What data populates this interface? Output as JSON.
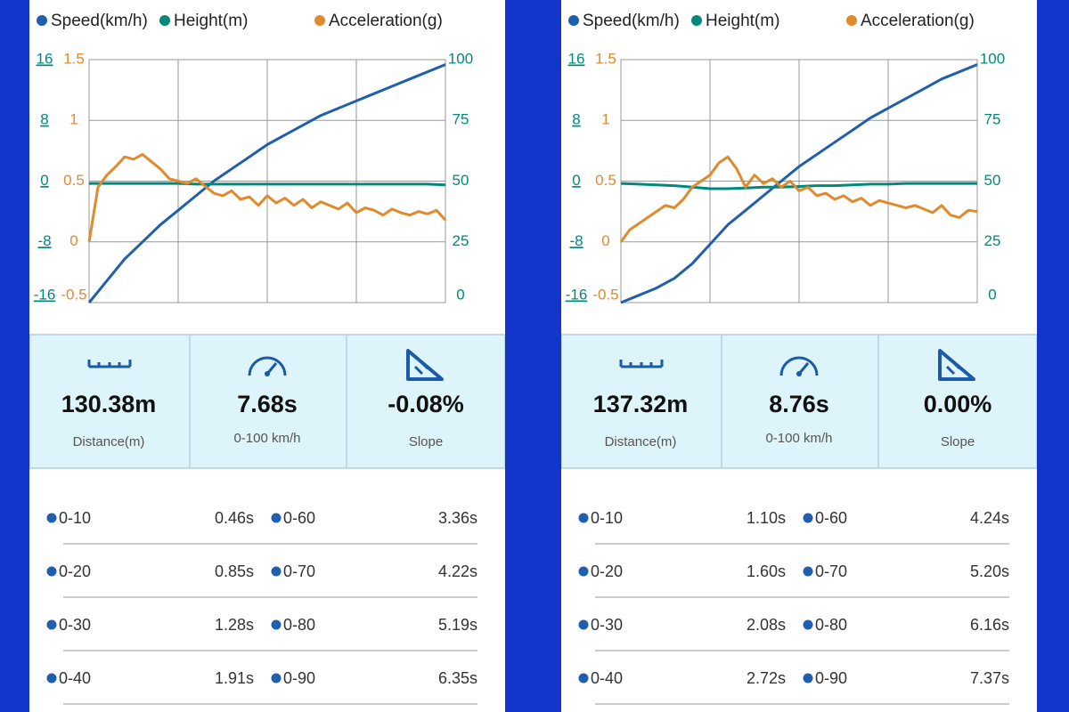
{
  "chart_data": [
    {
      "type": "line",
      "grid": true,
      "ylim": [
        -16,
        16
      ],
      "yticks": [
        -16,
        -8,
        0,
        8,
        16
      ],
      "y2lim": [
        0,
        100
      ],
      "y2ticks": [
        0,
        25,
        50,
        75,
        100
      ],
      "y3lim": [
        -0.5,
        1.5
      ],
      "y3ticks": [
        -0.5,
        0,
        0.5,
        1,
        1.5
      ],
      "series": [
        {
          "name": "Speed(km/h)",
          "color": "#1f5fad",
          "axis": "y2",
          "values": [
            0,
            9,
            18,
            25,
            32,
            38,
            44,
            50,
            55,
            60,
            65,
            69,
            73,
            77,
            80,
            83,
            86,
            89,
            92,
            95,
            98
          ]
        },
        {
          "name": "Height(m)",
          "color": "#00897b",
          "axis": "y",
          "values": [
            -0.3,
            -0.3,
            -0.3,
            -0.3,
            -0.3,
            -0.3,
            -0.4,
            -0.4,
            -0.4,
            -0.4,
            -0.4,
            -0.4,
            -0.4,
            -0.4,
            -0.4,
            -0.4,
            -0.4,
            -0.4,
            -0.4,
            -0.4,
            -0.5
          ]
        },
        {
          "name": "Acceleration(g)",
          "color": "#e08a2e",
          "axis": "y3",
          "values": [
            0,
            0.45,
            0.55,
            0.62,
            0.7,
            0.68,
            0.72,
            0.66,
            0.6,
            0.52,
            0.5,
            0.48,
            0.52,
            0.46,
            0.4,
            0.38,
            0.42,
            0.35,
            0.37,
            0.3,
            0.38,
            0.32,
            0.36,
            0.3,
            0.35,
            0.28,
            0.33,
            0.3,
            0.27,
            0.32,
            0.24,
            0.28,
            0.26,
            0.22,
            0.27,
            0.24,
            0.22,
            0.25,
            0.23,
            0.26,
            0.18
          ]
        }
      ]
    },
    {
      "type": "line",
      "grid": true,
      "ylim": [
        -16,
        16
      ],
      "yticks": [
        -16,
        -8,
        0,
        8,
        16
      ],
      "y2lim": [
        0,
        100
      ],
      "y2ticks": [
        0,
        25,
        50,
        75,
        100
      ],
      "y3lim": [
        -0.5,
        1.5
      ],
      "y3ticks": [
        -0.5,
        0,
        0.5,
        1,
        1.5
      ],
      "series": [
        {
          "name": "Speed(km/h)",
          "color": "#1f5fad",
          "axis": "y2",
          "values": [
            0,
            3,
            6,
            10,
            16,
            24,
            32,
            38,
            44,
            50,
            56,
            61,
            66,
            71,
            76,
            80,
            84,
            88,
            92,
            95,
            98
          ]
        },
        {
          "name": "Height(m)",
          "color": "#00897b",
          "axis": "y",
          "values": [
            -0.3,
            -0.4,
            -0.5,
            -0.6,
            -0.8,
            -1,
            -1,
            -0.9,
            -0.8,
            -0.8,
            -0.7,
            -0.6,
            -0.6,
            -0.5,
            -0.4,
            -0.4,
            -0.3,
            -0.3,
            -0.3,
            -0.3,
            -0.3
          ]
        },
        {
          "name": "Acceleration(g)",
          "color": "#e08a2e",
          "axis": "y3",
          "values": [
            0,
            0.1,
            0.15,
            0.2,
            0.25,
            0.3,
            0.28,
            0.35,
            0.45,
            0.5,
            0.55,
            0.65,
            0.7,
            0.6,
            0.45,
            0.55,
            0.48,
            0.52,
            0.45,
            0.5,
            0.42,
            0.45,
            0.38,
            0.4,
            0.35,
            0.38,
            0.33,
            0.36,
            0.3,
            0.34,
            0.32,
            0.3,
            0.28,
            0.3,
            0.27,
            0.24,
            0.3,
            0.22,
            0.2,
            0.26,
            0.25
          ]
        }
      ]
    }
  ],
  "panels": [
    {
      "stats": [
        {
          "value": "130.38m",
          "label": "Distance(m)"
        },
        {
          "value": "7.68s",
          "label": "0-100 km/h"
        },
        {
          "value": "-0.08%",
          "label": "Slope"
        }
      ],
      "splits": [
        {
          "label": "0-10",
          "value": "0.46s"
        },
        {
          "label": "0-20",
          "value": "0.85s"
        },
        {
          "label": "0-30",
          "value": "1.28s"
        },
        {
          "label": "0-40",
          "value": "1.91s"
        },
        {
          "label": "0-60",
          "value": "3.36s"
        },
        {
          "label": "0-70",
          "value": "4.22s"
        },
        {
          "label": "0-80",
          "value": "5.19s"
        },
        {
          "label": "0-90",
          "value": "6.35s"
        }
      ]
    },
    {
      "stats": [
        {
          "value": "137.32m",
          "label": "Distance(m)"
        },
        {
          "value": "8.76s",
          "label": "0-100 km/h"
        },
        {
          "value": "0.00%",
          "label": "Slope"
        }
      ],
      "splits": [
        {
          "label": "0-10",
          "value": "1.10s"
        },
        {
          "label": "0-20",
          "value": "1.60s"
        },
        {
          "label": "0-30",
          "value": "2.08s"
        },
        {
          "label": "0-40",
          "value": "2.72s"
        },
        {
          "label": "0-60",
          "value": "4.24s"
        },
        {
          "label": "0-70",
          "value": "5.20s"
        },
        {
          "label": "0-80",
          "value": "6.16s"
        },
        {
          "label": "0-90",
          "value": "7.37s"
        }
      ]
    }
  ]
}
